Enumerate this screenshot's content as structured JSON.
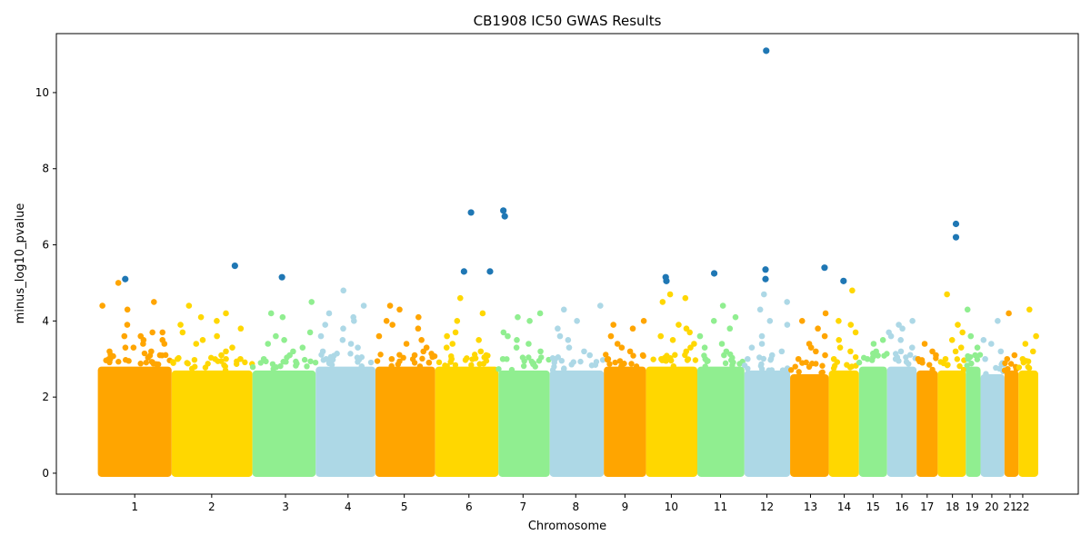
{
  "chart_data": {
    "type": "scatter",
    "title": "CB1908 IC50 GWAS Results",
    "xlabel": "Chromosome",
    "ylabel": "minus_log10_pvalue",
    "ylim": [
      -0.55,
      11.55
    ],
    "yticks": [
      0,
      2,
      4,
      6,
      8,
      10
    ],
    "grid": false,
    "legend": "none",
    "colors": {
      "palette": [
        "#FFA500",
        "#FFD700",
        "#90EE90",
        "#ADD8E6"
      ],
      "significant": "#1F77B4"
    },
    "chromosomes": [
      {
        "label": "1",
        "x_start": 0.0,
        "x_end": 10.5,
        "x_center": 5.25,
        "dense_top": 2.8,
        "outliers": [
          3.0,
          3.1,
          3.3,
          3.4,
          3.5,
          3.6,
          3.7,
          3.3,
          3.2,
          3.6,
          3.9,
          3.5,
          3.4,
          3.0,
          3.7,
          4.3,
          4.4,
          4.5,
          5.0,
          3.2
        ]
      },
      {
        "label": "2",
        "x_start": 10.5,
        "x_end": 22.0,
        "x_center": 16.2,
        "dense_top": 2.7,
        "outliers": [
          3.0,
          3.2,
          3.5,
          3.7,
          4.0,
          4.1,
          3.3,
          3.6,
          3.9,
          4.2,
          4.4,
          3.8,
          3.1,
          3.4,
          3.0
        ]
      },
      {
        "label": "3",
        "x_start": 22.0,
        "x_end": 31.0,
        "x_center": 26.7,
        "dense_top": 2.7,
        "outliers": [
          3.0,
          3.2,
          3.5,
          3.7,
          4.1,
          4.2,
          3.3,
          3.6,
          4.5,
          3.1,
          3.4
        ]
      },
      {
        "label": "4",
        "x_start": 31.0,
        "x_end": 39.5,
        "x_center": 35.6,
        "dense_top": 2.8,
        "outliers": [
          3.0,
          3.3,
          3.5,
          3.6,
          4.1,
          4.2,
          4.4,
          3.8,
          3.9,
          4.0,
          4.8,
          3.2,
          3.4
        ]
      },
      {
        "label": "5",
        "x_start": 39.5,
        "x_end": 48.0,
        "x_center": 43.6,
        "dense_top": 2.8,
        "outliers": [
          3.0,
          3.2,
          3.4,
          3.6,
          3.8,
          4.0,
          4.1,
          4.3,
          4.4,
          3.5,
          3.9,
          3.3,
          3.1
        ]
      },
      {
        "label": "6",
        "x_start": 48.0,
        "x_end": 57.0,
        "x_center": 52.8,
        "dense_top": 2.8,
        "outliers": [
          3.0,
          3.2,
          3.4,
          3.6,
          3.5,
          4.0,
          4.2,
          4.6,
          3.3,
          3.1,
          3.7
        ]
      },
      {
        "label": "7",
        "x_start": 57.0,
        "x_end": 64.3,
        "x_center": 60.5,
        "dense_top": 2.7,
        "outliers": [
          3.0,
          3.2,
          3.5,
          3.7,
          4.0,
          4.1,
          4.2,
          3.3,
          3.6,
          3.4
        ]
      },
      {
        "label": "8",
        "x_start": 64.3,
        "x_end": 72.0,
        "x_center": 68.0,
        "dense_top": 2.7,
        "outliers": [
          3.0,
          3.2,
          3.5,
          3.8,
          4.0,
          4.3,
          4.4,
          3.3,
          3.6,
          3.1
        ]
      },
      {
        "label": "9",
        "x_start": 72.0,
        "x_end": 78.0,
        "x_center": 75.0,
        "dense_top": 2.8,
        "outliers": [
          3.0,
          3.2,
          3.4,
          3.6,
          3.8,
          3.9,
          4.0,
          3.3,
          3.1
        ]
      },
      {
        "label": "10",
        "x_start": 78.0,
        "x_end": 85.3,
        "x_center": 81.6,
        "dense_top": 2.8,
        "outliers": [
          3.0,
          3.3,
          3.5,
          3.7,
          3.9,
          4.5,
          4.6,
          4.7,
          3.4,
          3.2,
          3.6,
          3.8
        ]
      },
      {
        "label": "11",
        "x_start": 85.3,
        "x_end": 92.0,
        "x_center": 88.6,
        "dense_top": 2.8,
        "outliers": [
          3.0,
          3.2,
          3.4,
          3.6,
          3.8,
          4.0,
          4.1,
          4.4,
          3.3,
          3.1
        ]
      },
      {
        "label": "12",
        "x_start": 92.0,
        "x_end": 98.5,
        "x_center": 95.2,
        "dense_top": 2.7,
        "outliers": [
          3.0,
          3.2,
          3.4,
          3.9,
          4.0,
          4.3,
          4.5,
          4.7,
          3.3,
          3.1,
          3.6
        ]
      },
      {
        "label": "13",
        "x_start": 98.5,
        "x_end": 104.0,
        "x_center": 101.4,
        "dense_top": 2.6,
        "outliers": [
          3.0,
          3.2,
          3.4,
          3.6,
          3.8,
          4.0,
          4.2,
          3.3,
          3.1
        ]
      },
      {
        "label": "14",
        "x_start": 104.0,
        "x_end": 108.3,
        "x_center": 106.2,
        "dense_top": 2.7,
        "outliers": [
          3.0,
          3.2,
          3.5,
          3.7,
          3.9,
          4.0,
          4.8,
          3.3
        ]
      },
      {
        "label": "15",
        "x_start": 108.3,
        "x_end": 112.3,
        "x_center": 110.3,
        "dense_top": 2.8,
        "outliers": [
          3.0,
          3.2,
          3.4,
          3.5,
          3.1
        ]
      },
      {
        "label": "16",
        "x_start": 112.3,
        "x_end": 116.5,
        "x_center": 114.4,
        "dense_top": 2.8,
        "outliers": [
          3.0,
          3.3,
          3.5,
          3.7,
          3.8,
          3.9,
          4.0,
          3.2,
          3.6
        ]
      },
      {
        "label": "17",
        "x_start": 116.5,
        "x_end": 119.5,
        "x_center": 118.0,
        "dense_top": 2.7,
        "outliers": [
          3.0,
          3.2,
          3.4,
          3.1
        ]
      },
      {
        "label": "18",
        "x_start": 119.5,
        "x_end": 123.5,
        "x_center": 121.6,
        "dense_top": 2.7,
        "outliers": [
          3.0,
          3.2,
          3.5,
          3.7,
          3.9,
          4.7,
          3.3
        ]
      },
      {
        "label": "19",
        "x_start": 123.5,
        "x_end": 125.6,
        "x_center": 124.4,
        "dense_top": 2.8,
        "outliers": [
          3.0,
          3.3,
          3.6,
          4.3,
          3.1
        ]
      },
      {
        "label": "20",
        "x_start": 125.6,
        "x_end": 129.0,
        "x_center": 127.2,
        "dense_top": 2.6,
        "outliers": [
          3.0,
          3.2,
          3.4,
          3.5,
          4.0
        ]
      },
      {
        "label": "21",
        "x_start": 129.0,
        "x_end": 131.0,
        "x_center": 129.8,
        "dense_top": 2.7,
        "outliers": [
          3.0,
          3.1,
          4.2
        ]
      },
      {
        "label": "22",
        "x_start": 131.0,
        "x_end": 133.8,
        "x_center": 131.6,
        "dense_top": 2.7,
        "outliers": [
          3.0,
          3.2,
          3.4,
          3.6,
          4.3
        ]
      }
    ],
    "significant_points": [
      {
        "x": 3.9,
        "y": 5.1
      },
      {
        "x": 19.5,
        "y": 5.45
      },
      {
        "x": 26.2,
        "y": 5.15
      },
      {
        "x": 52.1,
        "y": 5.3
      },
      {
        "x": 53.1,
        "y": 6.85
      },
      {
        "x": 55.8,
        "y": 5.3
      },
      {
        "x": 57.7,
        "y": 6.9
      },
      {
        "x": 57.9,
        "y": 6.75
      },
      {
        "x": 80.8,
        "y": 5.15
      },
      {
        "x": 80.9,
        "y": 5.05
      },
      {
        "x": 87.7,
        "y": 5.25
      },
      {
        "x": 95.1,
        "y": 11.1
      },
      {
        "x": 95.0,
        "y": 5.35
      },
      {
        "x": 95.0,
        "y": 5.1
      },
      {
        "x": 103.4,
        "y": 5.4
      },
      {
        "x": 106.1,
        "y": 5.05
      },
      {
        "x": 122.1,
        "y": 6.55
      },
      {
        "x": 122.1,
        "y": 6.2
      }
    ]
  }
}
